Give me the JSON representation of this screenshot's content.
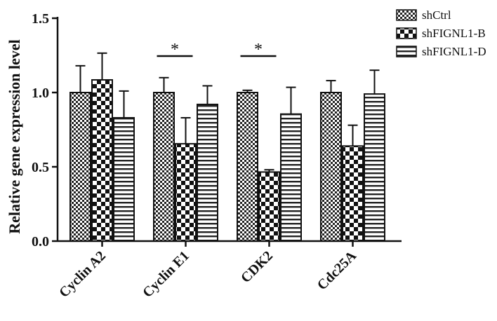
{
  "chart_data": {
    "type": "bar",
    "title": "",
    "xlabel": "",
    "ylabel": "Relative gene expression level",
    "ylim": [
      0,
      1.5
    ],
    "yticks": [
      "0.0",
      "0.5",
      "1.0",
      "1.5"
    ],
    "grid": false,
    "legend_position": "top-right",
    "categories": [
      "Cyclin A2",
      "Cyclin E1",
      "CDK2",
      "Cdc25A"
    ],
    "series": [
      {
        "name": "shCtrl",
        "pattern": "checker-small",
        "values": [
          1.0,
          1.0,
          1.0,
          1.0
        ],
        "errors": [
          0.18,
          0.1,
          0.015,
          0.08
        ]
      },
      {
        "name": "shFIGNL1-B",
        "pattern": "checker-large",
        "values": [
          1.085,
          0.655,
          0.465,
          0.64
        ],
        "errors": [
          0.18,
          0.175,
          0.015,
          0.14
        ]
      },
      {
        "name": "shFIGNL1-D",
        "pattern": "horizontal-stripes",
        "values": [
          0.83,
          0.92,
          0.855,
          0.99
        ],
        "errors": [
          0.18,
          0.125,
          0.18,
          0.16
        ]
      }
    ],
    "annotations": [
      {
        "text": "*",
        "category": "Cyclin E1",
        "spans": [
          "shCtrl",
          "shFIGNL1-B"
        ]
      },
      {
        "text": "*",
        "category": "CDK2",
        "spans": [
          "shCtrl",
          "shFIGNL1-B"
        ]
      }
    ],
    "colors": {
      "ink": "#111111",
      "background": "#ffffff"
    }
  }
}
